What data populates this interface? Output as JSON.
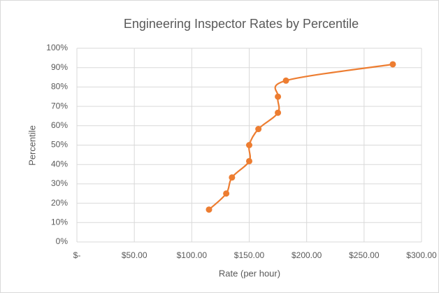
{
  "chart_data": {
    "type": "scatter",
    "title": "Engineering Inspector Rates by Percentile",
    "x_label": "Rate (per hour)",
    "y_label": "Percentile",
    "smooth": true,
    "grid": true,
    "series": [
      {
        "name": "Percentile",
        "color": "#ed7d31",
        "x": [
          115,
          130,
          135,
          150,
          150,
          158,
          175,
          175,
          182,
          275
        ],
        "values": [
          16.7,
          25,
          33.3,
          41.7,
          50,
          58.3,
          66.7,
          75,
          83.3,
          91.7
        ]
      }
    ],
    "xlim": [
      0,
      300
    ],
    "xticks": [
      {
        "value": 0,
        "label": "$-"
      },
      {
        "value": 50,
        "label": "$50.00"
      },
      {
        "value": 100,
        "label": "$100.00"
      },
      {
        "value": 150,
        "label": "$150.00"
      },
      {
        "value": 200,
        "label": "$200.00"
      },
      {
        "value": 250,
        "label": "$250.00"
      },
      {
        "value": 300,
        "label": "$300.00"
      }
    ],
    "ylim": [
      0,
      100
    ],
    "yticks": [
      {
        "value": 0,
        "label": "0%"
      },
      {
        "value": 10,
        "label": "10%"
      },
      {
        "value": 20,
        "label": "20%"
      },
      {
        "value": 30,
        "label": "30%"
      },
      {
        "value": 40,
        "label": "40%"
      },
      {
        "value": 50,
        "label": "50%"
      },
      {
        "value": 60,
        "label": "60%"
      },
      {
        "value": 70,
        "label": "70%"
      },
      {
        "value": 80,
        "label": "80%"
      },
      {
        "value": 90,
        "label": "90%"
      },
      {
        "value": 100,
        "label": "100%"
      }
    ]
  }
}
